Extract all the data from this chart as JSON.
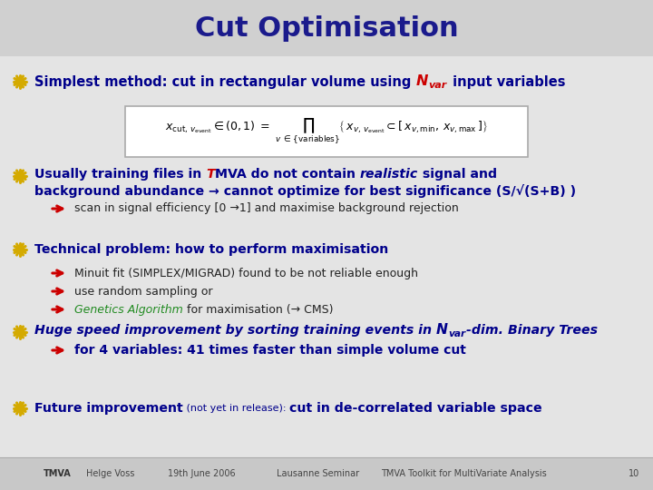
{
  "title": "Cut Optimisation",
  "title_color": "#1a1a8c",
  "bg_color": "#dcdcdc",
  "title_bg": "#d0d0d0",
  "content_bg": "#e4e4e4",
  "footer_bg": "#c8c8c8",
  "dark_blue": "#00008B",
  "red": "#cc0000",
  "green": "#228B22",
  "gold": "#d4aa00",
  "black": "#222222",
  "line1_pre": "Simplest method: cut in rectangular volume using ",
  "line1_N": "N",
  "line1_var": "var",
  "line1_post": " input variables",
  "bullet2_pre": "Usually training files in ",
  "bullet2_T": "T",
  "bullet2_mid": "MVA do not contain ",
  "bullet2_realistic": "realistic",
  "bullet2_end": " signal and",
  "bullet2_line2": "background abundance → cannot optimize for best significance (S/√(S+B) )",
  "sub2": "scan in signal efficiency [0 →1] and maximise background rejection",
  "bullet3": "Technical problem: how to perform maximisation",
  "sub3_1": "Minuit fit (SIMPLEX/MIGRAD) found to be not reliable enough",
  "sub3_2": "use random sampling or",
  "sub3_3g": "Genetics Algorithm",
  "sub3_3b": " for maximisation (→ CMS)",
  "bullet4_pre": "Huge speed improvement by sorting training events in ",
  "bullet4_N": "N",
  "bullet4_var": "var",
  "bullet4_mid": "-dim. ",
  "bullet4_BT": "Binary Trees",
  "sub4": "for 4 variables: 41 times faster than simple volume cut",
  "bullet5_a": "Future improvement",
  "bullet5_b": " (not yet in release): ",
  "bullet5_c": "cut in de-correlated variable space",
  "footer": [
    "Helge Voss",
    "19th June 2006",
    "Lausanne Seminar",
    "TMVA Toolkit for MultiVariate Analysis",
    "10"
  ]
}
